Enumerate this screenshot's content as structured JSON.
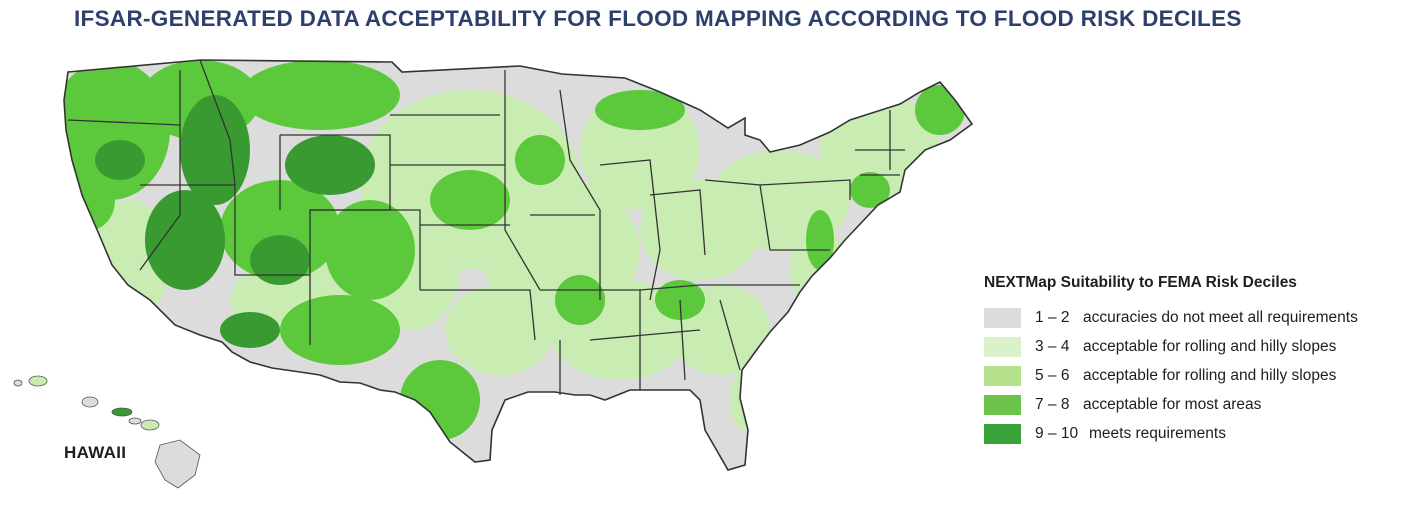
{
  "title": "IFSAR-GENERATED DATA ACCEPTABILITY FOR FLOOD MAPPING ACCORDING TO FLOOD RISK DECILES",
  "hawaii_label": "HAWAII",
  "legend": {
    "title": "NEXTMap Suitability to FEMA Risk Deciles",
    "items": [
      {
        "range": "1 – 2",
        "desc": "accuracies do not meet all requirements",
        "color": "#dcdcdc"
      },
      {
        "range": "3 – 4",
        "desc": "acceptable for rolling and hilly slopes",
        "color": "#d9f2c9"
      },
      {
        "range": "5 – 6",
        "desc": "acceptable for rolling and hilly slopes",
        "color": "#b5e08c"
      },
      {
        "range": "7 – 8",
        "desc": "acceptable for most areas",
        "color": "#6cc54a"
      },
      {
        "range": "9 – 10",
        "desc": "meets requirements",
        "color": "#3aa43a"
      }
    ]
  },
  "map_colors": {
    "base_gray": "#dcdcdc",
    "light_green": "#c9ecb2",
    "bright_green": "#5cc83c",
    "dark_green": "#3a9a32",
    "border": "#333333"
  }
}
